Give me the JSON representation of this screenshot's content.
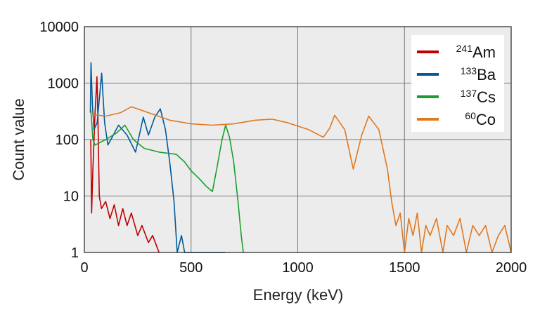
{
  "chart_data": {
    "type": "line",
    "xlabel": "Energy (keV)",
    "ylabel": "Count value",
    "xlim": [
      0,
      2000
    ],
    "ylim": [
      1,
      10000
    ],
    "yscale": "log",
    "grid": true,
    "legend_position": "top-right",
    "x_ticks": [
      "0",
      "500",
      "1000",
      "1500",
      "2000"
    ],
    "y_ticks": [
      "1",
      "10",
      "100",
      "1000",
      "10000"
    ],
    "series": [
      {
        "name": "241Am",
        "mass": "241",
        "element": "Am",
        "color": "#c00000",
        "points": [
          [
            30,
            100
          ],
          [
            34,
            5
          ],
          [
            40,
            30
          ],
          [
            50,
            300
          ],
          [
            59,
            1300
          ],
          [
            64,
            200
          ],
          [
            70,
            10
          ],
          [
            80,
            6
          ],
          [
            100,
            8
          ],
          [
            120,
            4
          ],
          [
            140,
            7
          ],
          [
            160,
            3
          ],
          [
            180,
            6
          ],
          [
            200,
            3
          ],
          [
            220,
            5
          ],
          [
            250,
            2
          ],
          [
            270,
            3
          ],
          [
            300,
            1.5
          ],
          [
            320,
            2
          ],
          [
            350,
            1
          ]
        ]
      },
      {
        "name": "133Ba",
        "mass": "133",
        "element": "Ba",
        "color": "#005a9c",
        "points": [
          [
            28,
            300
          ],
          [
            31,
            2300
          ],
          [
            38,
            400
          ],
          [
            45,
            150
          ],
          [
            60,
            200
          ],
          [
            81,
            1500
          ],
          [
            95,
            200
          ],
          [
            110,
            80
          ],
          [
            130,
            110
          ],
          [
            160,
            180
          ],
          [
            200,
            120
          ],
          [
            240,
            60
          ],
          [
            276,
            250
          ],
          [
            300,
            120
          ],
          [
            330,
            250
          ],
          [
            356,
            350
          ],
          [
            380,
            150
          ],
          [
            400,
            40
          ],
          [
            420,
            8
          ],
          [
            435,
            1
          ],
          [
            455,
            2
          ],
          [
            470,
            1
          ],
          [
            660,
            1
          ]
        ]
      },
      {
        "name": "137Cs",
        "mass": "137",
        "element": "Cs",
        "color": "#1a9f2e",
        "points": [
          [
            30,
            350
          ],
          [
            40,
            100
          ],
          [
            50,
            80
          ],
          [
            100,
            100
          ],
          [
            150,
            130
          ],
          [
            190,
            180
          ],
          [
            230,
            100
          ],
          [
            280,
            70
          ],
          [
            350,
            60
          ],
          [
            430,
            55
          ],
          [
            470,
            40
          ],
          [
            500,
            28
          ],
          [
            540,
            20
          ],
          [
            570,
            15
          ],
          [
            600,
            12
          ],
          [
            620,
            30
          ],
          [
            645,
            100
          ],
          [
            662,
            180
          ],
          [
            680,
            110
          ],
          [
            700,
            40
          ],
          [
            720,
            8
          ],
          [
            735,
            2
          ],
          [
            745,
            1
          ]
        ]
      },
      {
        "name": "60Co",
        "mass": "60",
        "element": "Co",
        "color": "#e07820",
        "points": [
          [
            30,
            280
          ],
          [
            100,
            260
          ],
          [
            170,
            300
          ],
          [
            220,
            380
          ],
          [
            300,
            300
          ],
          [
            400,
            220
          ],
          [
            500,
            190
          ],
          [
            600,
            180
          ],
          [
            700,
            190
          ],
          [
            800,
            220
          ],
          [
            880,
            230
          ],
          [
            950,
            200
          ],
          [
            1050,
            150
          ],
          [
            1120,
            110
          ],
          [
            1150,
            160
          ],
          [
            1173,
            270
          ],
          [
            1220,
            150
          ],
          [
            1260,
            30
          ],
          [
            1300,
            120
          ],
          [
            1332,
            260
          ],
          [
            1380,
            150
          ],
          [
            1420,
            30
          ],
          [
            1440,
            8
          ],
          [
            1460,
            3
          ],
          [
            1480,
            5
          ],
          [
            1500,
            1
          ],
          [
            1520,
            4
          ],
          [
            1540,
            2
          ],
          [
            1560,
            5
          ],
          [
            1580,
            1
          ],
          [
            1600,
            3
          ],
          [
            1620,
            2
          ],
          [
            1650,
            4
          ],
          [
            1680,
            1
          ],
          [
            1700,
            3
          ],
          [
            1730,
            2
          ],
          [
            1760,
            4
          ],
          [
            1790,
            1
          ],
          [
            1820,
            3
          ],
          [
            1850,
            2
          ],
          [
            1880,
            3
          ],
          [
            1910,
            1
          ],
          [
            1940,
            2
          ],
          [
            1970,
            3
          ],
          [
            2000,
            1
          ]
        ]
      }
    ]
  }
}
